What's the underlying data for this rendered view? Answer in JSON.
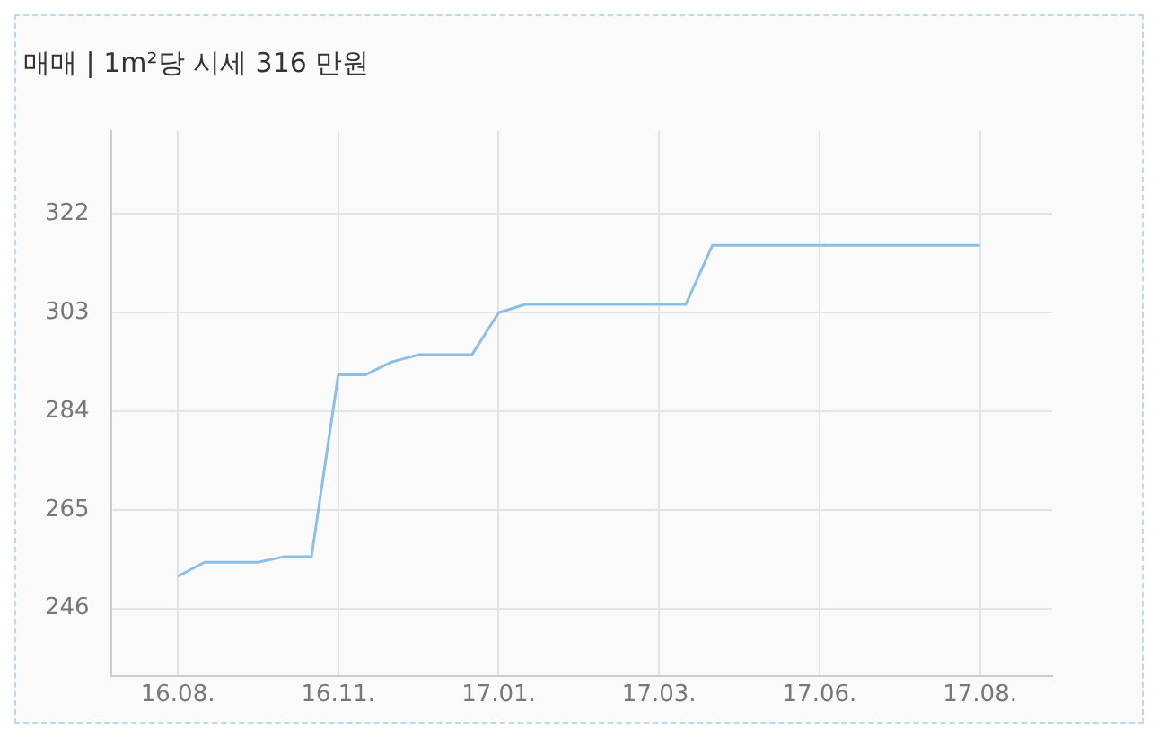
{
  "chart_data": {
    "type": "line",
    "title": "매매 | 1m²당 시세 316 만원",
    "categories": [
      "16.08.",
      null,
      null,
      null,
      null,
      null,
      "16.11.",
      null,
      null,
      null,
      null,
      null,
      "17.01.",
      null,
      null,
      null,
      null,
      null,
      "17.03.",
      null,
      null,
      null,
      null,
      null,
      "17.06.",
      null,
      null,
      null,
      null,
      null,
      "17.08."
    ],
    "series": [
      {
        "color": "#8bbfe8",
        "values": [
          252.2,
          254.9,
          254.9,
          254.9,
          256,
          256,
          291,
          291,
          293.5,
          294.9,
          294.9,
          294.9,
          303,
          304.6,
          304.6,
          304.6,
          304.6,
          304.6,
          304.6,
          304.6,
          316,
          316,
          316,
          316,
          316,
          316,
          316,
          316,
          316,
          316,
          316
        ]
      }
    ],
    "ylim": [
      233,
      338
    ],
    "yticks": [
      246,
      265,
      284,
      303,
      322
    ],
    "grid": true,
    "legend": false,
    "marker": "none",
    "line_style": "solid"
  }
}
